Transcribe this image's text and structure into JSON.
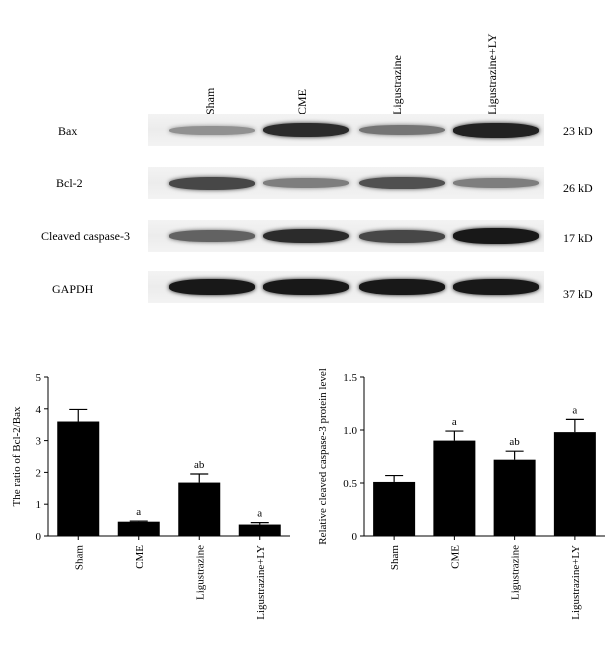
{
  "blot": {
    "lanes": [
      "Sham",
      "CME",
      "Ligustrazine",
      "Ligustrazine+LY"
    ],
    "rows": [
      {
        "protein": "Bax",
        "kd": "23 kD",
        "intensity": [
          0.3,
          0.85,
          0.45,
          0.9
        ]
      },
      {
        "protein": "Bcl-2",
        "kd": "26 kD",
        "intensity": [
          0.7,
          0.4,
          0.65,
          0.4
        ]
      },
      {
        "protein": "Cleaved caspase-3",
        "kd": "17 kD",
        "intensity": [
          0.55,
          0.85,
          0.7,
          0.95
        ]
      },
      {
        "protein": "GAPDH",
        "kd": "37 kD",
        "intensity": [
          0.95,
          0.95,
          0.95,
          0.95
        ]
      }
    ]
  },
  "chart_data": [
    {
      "type": "bar",
      "categories": [
        "Sham",
        "CME",
        "Ligustrazine",
        "Ligustrazine+LY"
      ],
      "values": [
        3.6,
        0.45,
        1.68,
        0.36
      ],
      "errors": [
        0.38,
        0.02,
        0.27,
        0.06
      ],
      "annotations": [
        "",
        "a",
        "ab",
        "a"
      ],
      "ylabel": "The ratio of Bcl-2/Bax",
      "ylim": [
        0,
        5
      ],
      "yticks": [
        "0",
        "1",
        "2",
        "3",
        "4",
        "5"
      ]
    },
    {
      "type": "bar",
      "categories": [
        "Sham",
        "CME",
        "Ligustrazine",
        "Ligustrazine+LY"
      ],
      "values": [
        0.51,
        0.9,
        0.72,
        0.98
      ],
      "errors": [
        0.06,
        0.09,
        0.08,
        0.12
      ],
      "annotations": [
        "",
        "a",
        "ab",
        "a"
      ],
      "ylabel": "Relative cleaved caspase-3 protein level",
      "ylim": [
        0,
        1.5
      ],
      "yticks": [
        "0",
        "0.5",
        "1.0",
        "1.5"
      ]
    }
  ]
}
